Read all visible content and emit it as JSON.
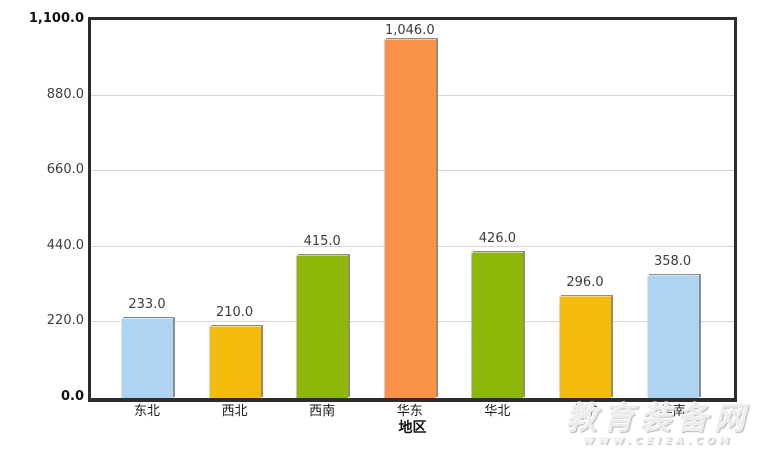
{
  "chart_data": {
    "type": "bar",
    "title": "",
    "xlabel": "地区",
    "ylabel": "",
    "ylim": [
      0,
      1100
    ],
    "grid_on": true,
    "grid_values": [
      220,
      440,
      660,
      880
    ],
    "y_ticks": [
      {
        "value": 0,
        "label": "0.0",
        "bold": true
      },
      {
        "value": 220,
        "label": "220.0",
        "bold": false
      },
      {
        "value": 440,
        "label": "440.0",
        "bold": false
      },
      {
        "value": 660,
        "label": "660.0",
        "bold": false
      },
      {
        "value": 880,
        "label": "880.0",
        "bold": false
      },
      {
        "value": 1100,
        "label": "1,100.0",
        "bold": true
      }
    ],
    "categories": [
      "东北",
      "西北",
      "西南",
      "华东",
      "华北",
      "华中",
      "华南"
    ],
    "values": [
      233.0,
      210.0,
      415.0,
      1046.0,
      426.0,
      296.0,
      358.0
    ],
    "value_labels": [
      "233.0",
      "210.0",
      "415.0",
      "1,046.0",
      "426.0",
      "296.0",
      "358.0"
    ],
    "bar_colors": [
      "#AED4F1",
      "#F4BB0F",
      "#8DB80A",
      "#FB9249",
      "#8DB80A",
      "#F4BB0F",
      "#AED4F1"
    ],
    "legend": []
  },
  "colors": {
    "frame": "#2d2d2d",
    "grid": "#d6d6d6",
    "bar_shadow": "#8c8c8c",
    "value_label": "#3c3c3c",
    "tick_label": "#3c3c3c",
    "category_label": "#1a1a1a",
    "axis_title": "#111111"
  },
  "watermark": {
    "line1": "教育装备网",
    "line2": "WWW.CEIEA.COM"
  }
}
